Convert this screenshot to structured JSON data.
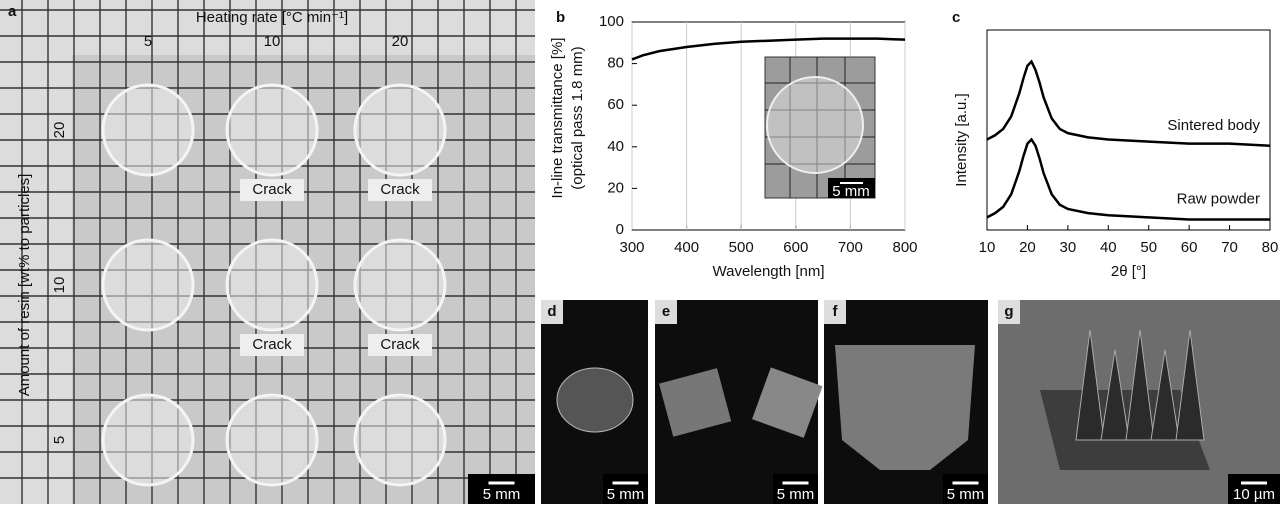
{
  "panel_a": {
    "label": "a",
    "column_title": "Heating rate [°C min⁻¹]",
    "columns": [
      "5",
      "10",
      "20"
    ],
    "row_title": "Amount of resin [wt% to particles]",
    "rows": [
      "20",
      "10",
      "5"
    ],
    "annotations": [
      "Crack",
      "Crack",
      "Crack",
      "Crack"
    ],
    "scale_bar": "5 mm"
  },
  "photos": [
    {
      "label": "d",
      "scale_bar": "5 mm"
    },
    {
      "label": "e",
      "scale_bar": "5 mm"
    },
    {
      "label": "f",
      "scale_bar": "5 mm"
    },
    {
      "label": "g",
      "scale_bar": "10 µm"
    }
  ],
  "chart_data": [
    {
      "type": "line",
      "panel_label": "b",
      "xlabel": "Wavelength [nm]",
      "ylabel": [
        "In-line transmittance [%]",
        "(optical pass 1.8 mm)"
      ],
      "x": [
        300,
        320,
        350,
        400,
        450,
        500,
        550,
        600,
        650,
        700,
        750,
        800
      ],
      "series": [
        {
          "color": "#000000",
          "values": [
            82,
            84,
            86,
            88,
            89.5,
            90.5,
            91,
            91.5,
            92,
            92,
            92,
            91.5
          ]
        }
      ],
      "xlim": [
        300,
        800
      ],
      "xticks": [
        300,
        400,
        500,
        600,
        700,
        800
      ],
      "ylim": [
        0,
        100
      ],
      "yticks": [
        0,
        20,
        40,
        60,
        80,
        100
      ],
      "grid": true,
      "inset_scale_bar": "5 mm"
    },
    {
      "type": "line",
      "panel_label": "c",
      "xlabel": "2θ [°]",
      "ylabel": [
        "Intensity [a.u.]"
      ],
      "x": [
        10,
        12,
        14,
        16,
        18,
        19,
        20,
        21,
        22,
        23,
        24,
        26,
        28,
        30,
        35,
        40,
        50,
        60,
        70,
        80
      ],
      "series": [
        {
          "name": "Sintered body",
          "color": "#000000",
          "values": [
            4.3,
            4.5,
            4.8,
            5.4,
            6.5,
            7.2,
            7.8,
            8.0,
            7.6,
            7.0,
            6.3,
            5.3,
            4.8,
            4.6,
            4.4,
            4.3,
            4.2,
            4.1,
            4.1,
            4.0
          ]
        },
        {
          "name": "Raw powder",
          "color": "#000000",
          "values": [
            0.6,
            0.8,
            1.1,
            1.7,
            2.8,
            3.5,
            4.1,
            4.3,
            4.0,
            3.4,
            2.7,
            1.7,
            1.2,
            1.0,
            0.8,
            0.7,
            0.6,
            0.5,
            0.5,
            0.5
          ]
        }
      ],
      "xlim": [
        10,
        80
      ],
      "xticks": [
        10,
        20,
        30,
        40,
        50,
        60,
        70,
        80
      ],
      "ylim": [
        0,
        9.5
      ],
      "grid": false
    }
  ]
}
